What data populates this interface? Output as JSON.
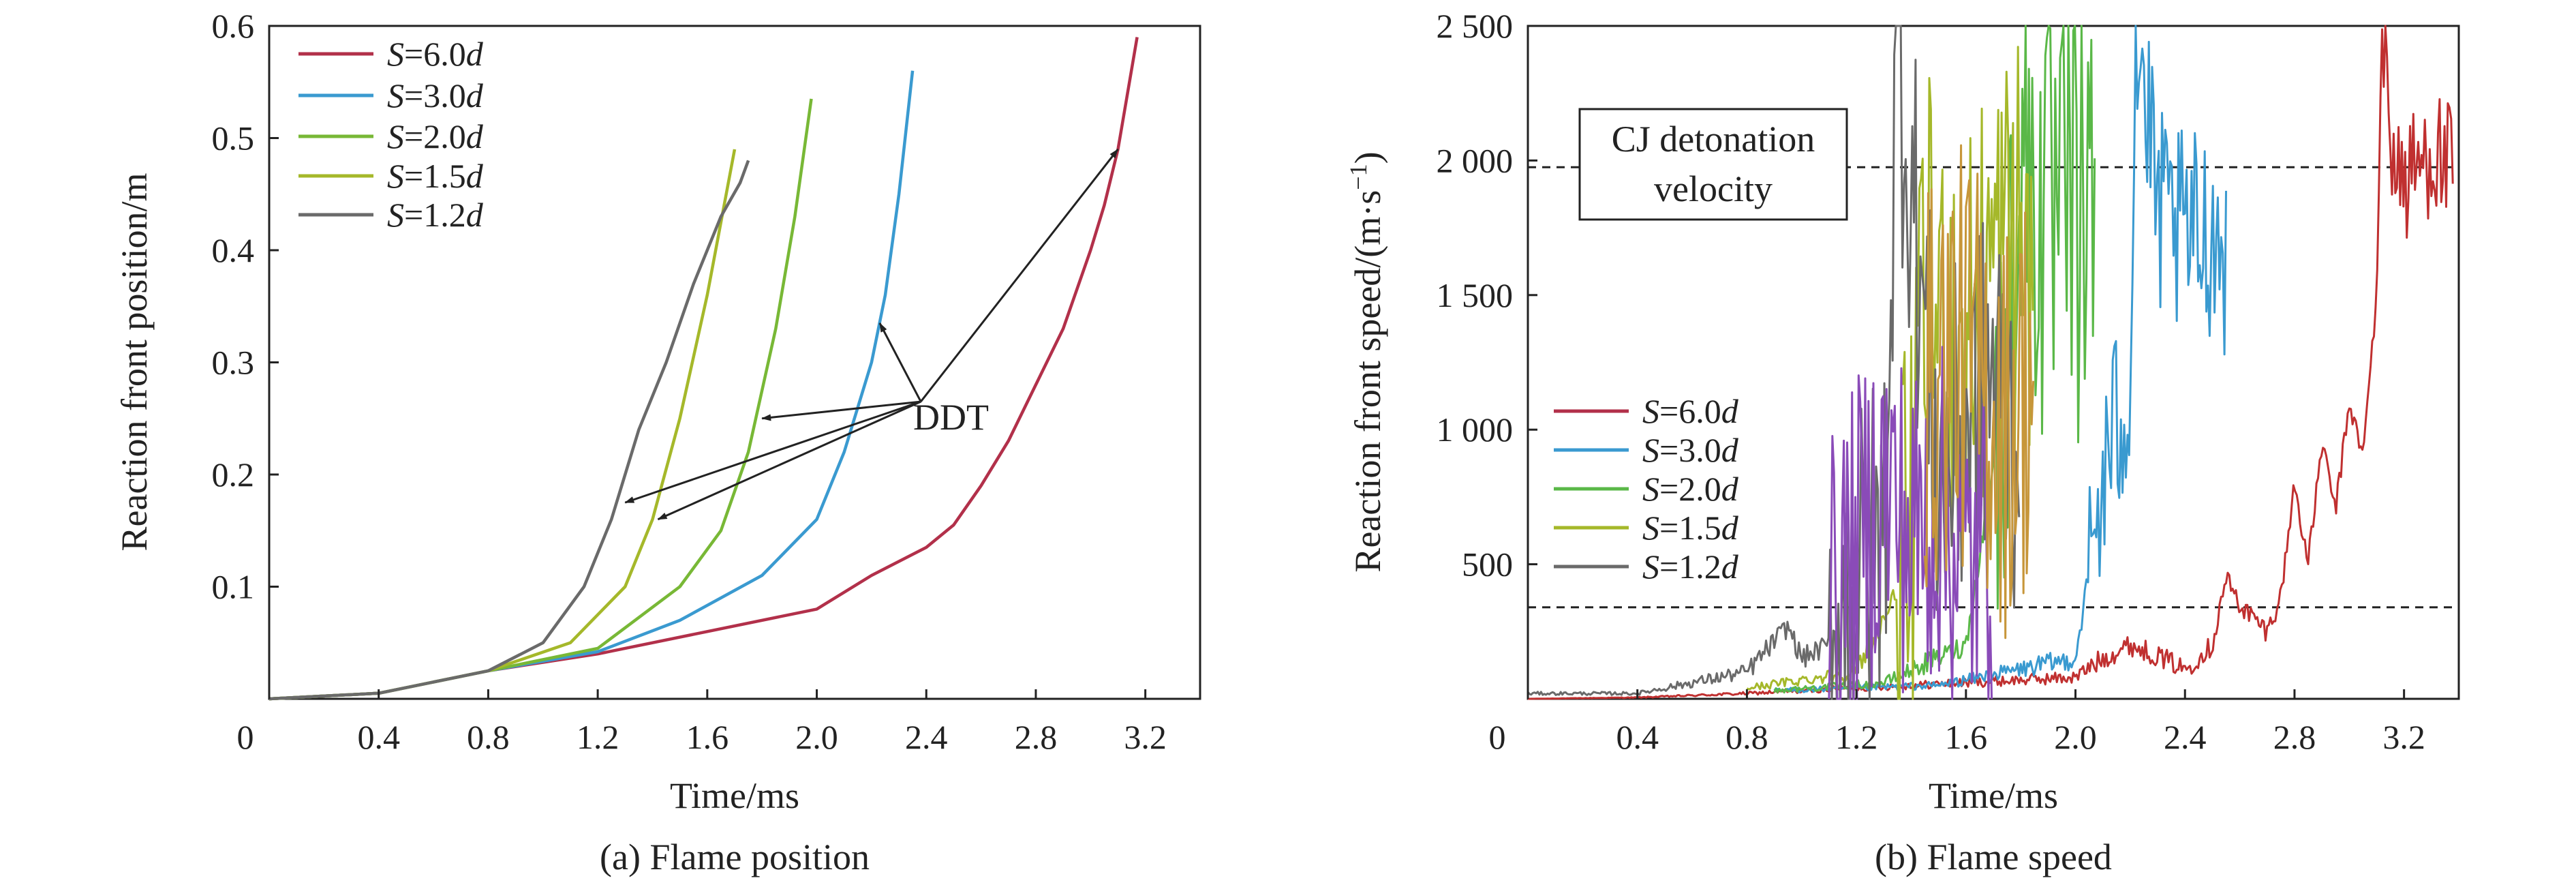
{
  "chart_data": [
    {
      "type": "line",
      "caption": "(a) Flame position",
      "xlabel": "Time/ms",
      "ylabel": "Reaction front position/m",
      "xlim": [
        0,
        3.4
      ],
      "ylim": [
        0,
        0.6
      ],
      "xticks": [
        "0",
        "0.4",
        "0.8",
        "1.2",
        "1.6",
        "2.0",
        "2.4",
        "2.8",
        "3.2"
      ],
      "yticks": [
        "0.1",
        "0.2",
        "0.3",
        "0.4",
        "0.5",
        "0.6"
      ],
      "legend_position": "top-left",
      "series": [
        {
          "name": "S=6.0d",
          "label_var": "S",
          "label_eq": "=6.0",
          "label_unit": "d",
          "color": "#b2304a",
          "x": [
            0,
            0.4,
            0.8,
            1.2,
            1.6,
            2.0,
            2.2,
            2.4,
            2.5,
            2.6,
            2.7,
            2.8,
            2.9,
            3.0,
            3.05,
            3.1,
            3.17
          ],
          "y": [
            0,
            0.005,
            0.025,
            0.04,
            0.06,
            0.08,
            0.11,
            0.135,
            0.155,
            0.19,
            0.23,
            0.28,
            0.33,
            0.4,
            0.44,
            0.49,
            0.59
          ]
        },
        {
          "name": "S=3.0d",
          "label_var": "S",
          "label_eq": "=3.0",
          "label_unit": "d",
          "color": "#3a9ad0",
          "x": [
            0,
            0.4,
            0.8,
            1.2,
            1.5,
            1.8,
            2.0,
            2.1,
            2.2,
            2.25,
            2.3,
            2.35
          ],
          "y": [
            0,
            0.005,
            0.025,
            0.042,
            0.07,
            0.11,
            0.16,
            0.22,
            0.3,
            0.36,
            0.45,
            0.56
          ]
        },
        {
          "name": "S=2.0d",
          "label_var": "S",
          "label_eq": "=2.0",
          "label_unit": "d",
          "color": "#78b836",
          "x": [
            0,
            0.4,
            0.8,
            1.2,
            1.5,
            1.65,
            1.75,
            1.85,
            1.92,
            1.98
          ],
          "y": [
            0,
            0.005,
            0.025,
            0.045,
            0.1,
            0.15,
            0.22,
            0.33,
            0.43,
            0.535
          ]
        },
        {
          "name": "S=1.5d",
          "label_var": "S",
          "label_eq": "=1.5",
          "label_unit": "d",
          "color": "#a5b82a",
          "x": [
            0,
            0.4,
            0.8,
            1.1,
            1.3,
            1.4,
            1.5,
            1.6,
            1.7
          ],
          "y": [
            0,
            0.005,
            0.025,
            0.05,
            0.1,
            0.16,
            0.25,
            0.36,
            0.49
          ]
        },
        {
          "name": "S=1.2d",
          "label_var": "S",
          "label_eq": "=1.2",
          "label_unit": "d",
          "color": "#6a6a6a",
          "x": [
            0,
            0.4,
            0.8,
            1.0,
            1.15,
            1.25,
            1.35,
            1.45,
            1.55,
            1.65,
            1.72,
            1.75
          ],
          "y": [
            0,
            0.005,
            0.025,
            0.05,
            0.1,
            0.16,
            0.24,
            0.3,
            0.37,
            0.43,
            0.46,
            0.48
          ]
        }
      ],
      "annotations": [
        {
          "text": "DDT",
          "x": 2.62,
          "y": 0.245,
          "arrow_from": [
            2.38,
            0.265
          ],
          "arrow_targets": [
            [
              3.1,
              0.49
            ],
            [
              2.23,
              0.335
            ],
            [
              1.8,
              0.25
            ],
            [
              1.42,
              0.16
            ],
            [
              1.3,
              0.175
            ]
          ]
        }
      ]
    },
    {
      "type": "line",
      "caption": "(b) Flame speed",
      "xlabel": "Time/ms",
      "ylabel_main": "Reaction front speed/(m·s",
      "ylabel_sup": "−1",
      "ylabel_close": ")",
      "xlim": [
        0,
        3.4
      ],
      "ylim": [
        0,
        2500
      ],
      "xticks": [
        "0",
        "0.4",
        "0.8",
        "1.2",
        "1.6",
        "2.0",
        "2.4",
        "2.8",
        "3.2"
      ],
      "yticks": [
        "500",
        "1 000",
        "1 500",
        "2 000",
        "2 500"
      ],
      "legend_position": "center-left",
      "reference_lines": [
        {
          "label_line1": "CJ detonation",
          "label_line2": "velocity",
          "value": 1975,
          "style": "dashed"
        },
        {
          "value": 340,
          "style": "dashed"
        }
      ],
      "series": [
        {
          "name": "S=6.0d",
          "label_var": "S",
          "label_eq": "=6.0",
          "label_unit": "d",
          "color": "#b2304a",
          "render_color": "#c03030",
          "x": [
            0,
            0.4,
            0.8,
            1.2,
            1.6,
            2.0,
            2.1,
            2.2,
            2.3,
            2.4,
            2.5,
            2.55,
            2.6,
            2.7,
            2.75,
            2.8,
            2.85,
            2.9,
            2.95,
            3.0,
            3.05,
            3.1,
            3.12,
            3.15,
            3.2,
            3.3,
            3.38
          ],
          "y": [
            0,
            5,
            20,
            40,
            60,
            80,
            150,
            200,
            160,
            110,
            200,
            450,
            350,
            250,
            380,
            800,
            500,
            950,
            700,
            1100,
            900,
            1500,
            2500,
            2100,
            1900,
            2050,
            1950
          ],
          "noise_from": 3.12,
          "noise_to": 3.38,
          "noise_amp": 250
        },
        {
          "name": "S=3.0d",
          "label_var": "S",
          "label_eq": "=3.0",
          "label_unit": "d",
          "color": "#3a9ad0",
          "x": [
            0.9,
            1.5,
            2.0,
            2.1,
            2.2,
            2.22,
            2.3,
            2.4,
            2.5,
            2.55
          ],
          "y": [
            30,
            50,
            150,
            800,
            1200,
            2500,
            1800,
            1700,
            1750,
            1650
          ],
          "noise_from": 2.05,
          "noise_to": 2.55,
          "noise_amp": 400
        },
        {
          "name": "S=2.0d",
          "label_var": "S",
          "label_eq": "=2.0",
          "label_unit": "d",
          "color": "#5ab848",
          "x": [
            0.9,
            1.3,
            1.6,
            1.75,
            1.8,
            1.9,
            2.0,
            2.07
          ],
          "y": [
            30,
            60,
            200,
            1200,
            2100,
            1700,
            1800,
            1750
          ],
          "noise_from": 1.7,
          "noise_to": 2.07,
          "noise_amp": 900
        },
        {
          "name": "S=1.5d",
          "label_var": "S",
          "label_eq": "=1.5",
          "label_unit": "d",
          "color": "#a5b82a",
          "x": [
            0.8,
            1.2,
            1.4,
            1.45,
            1.6,
            1.7,
            1.8,
            1.85
          ],
          "y": [
            40,
            100,
            500,
            1500,
            1300,
            1600,
            1700,
            1500
          ],
          "noise_from": 1.35,
          "noise_to": 1.85,
          "noise_amp": 850
        },
        {
          "name": "S=1.2d",
          "label_var": "S",
          "label_eq": "=1.2",
          "label_unit": "d",
          "color": "#6a6a6a",
          "x": [
            0,
            0.4,
            0.8,
            0.95,
            1.0,
            1.1,
            1.3,
            1.35,
            1.5,
            1.7,
            1.8
          ],
          "y": [
            20,
            20,
            100,
            270,
            150,
            200,
            600,
            2500,
            800,
            1200,
            900
          ],
          "noise_from": 1.1,
          "noise_to": 1.8,
          "noise_amp": 700
        },
        {
          "name": "",
          "label_var": "",
          "label_eq": "",
          "label_unit": "",
          "color": "#8a4bb8",
          "x": [
            1.1,
            1.2,
            1.3,
            1.4,
            1.5,
            1.6,
            1.7
          ],
          "y": [
            300,
            550,
            800,
            600,
            700,
            500,
            600
          ],
          "noise_from": 1.1,
          "noise_to": 1.7,
          "noise_amp": 650
        },
        {
          "name": "",
          "label_var": "",
          "label_eq": "",
          "label_unit": "",
          "color": "#c7963a",
          "x": [
            1.45,
            1.55,
            1.65,
            1.75,
            1.85
          ],
          "y": [
            1100,
            1300,
            1200,
            1000,
            1250
          ],
          "noise_from": 1.45,
          "noise_to": 1.85,
          "noise_amp": 800
        }
      ]
    }
  ]
}
